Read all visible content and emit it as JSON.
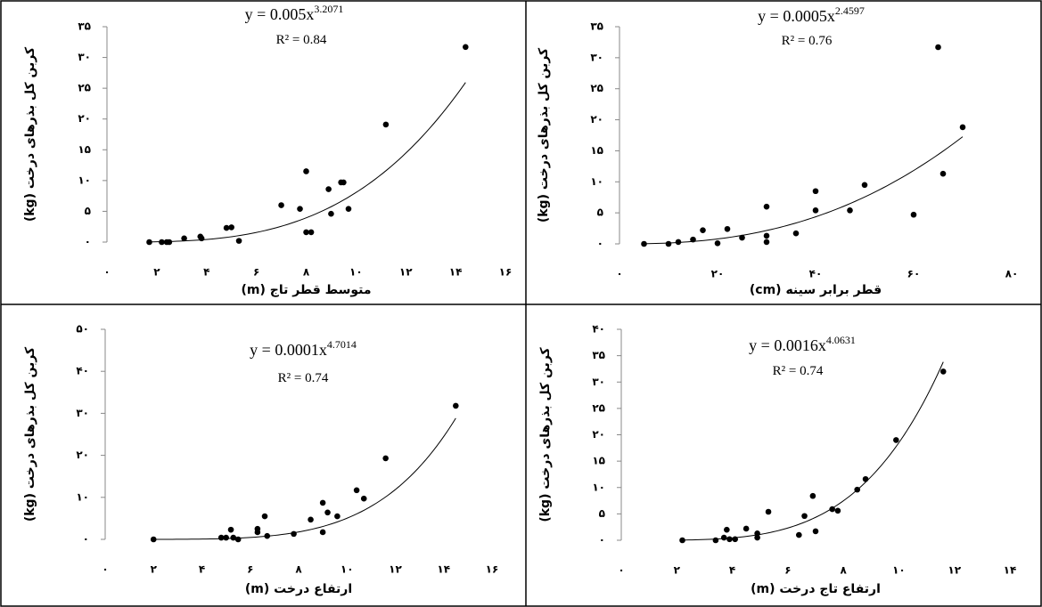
{
  "chart_data": [
    {
      "type": "scatter",
      "color": "#000000",
      "grid": false,
      "x_label": "متوسط قطر تاج (m)",
      "y_label": "کربن کل بذرهای درخت (kg)",
      "x": [
        1.7,
        2.2,
        2.4,
        2.5,
        3.1,
        3.75,
        3.8,
        4.8,
        5.0,
        5.3,
        7.0,
        7.75,
        8.0,
        8.2,
        8.0,
        8.9,
        9.0,
        9.4,
        9.5,
        9.7,
        11.2,
        14.4
      ],
      "y": [
        0,
        0,
        0,
        0,
        0.6,
        0.9,
        0.6,
        2.3,
        2.4,
        0.2,
        6,
        5.4,
        1.6,
        1.6,
        11.5,
        8.6,
        4.6,
        9.7,
        9.7,
        5.4,
        19.1,
        31.7
      ],
      "xlim": [
        0,
        16
      ],
      "ylim": [
        0,
        35
      ],
      "xticks": [
        {
          "value": 0,
          "label": "۰"
        },
        {
          "value": 2,
          "label": "۲"
        },
        {
          "value": 4,
          "label": "۴"
        },
        {
          "value": 6,
          "label": "۶"
        },
        {
          "value": 8,
          "label": "۸"
        },
        {
          "value": 10,
          "label": "۱۰"
        },
        {
          "value": 12,
          "label": "۱۲"
        },
        {
          "value": 14,
          "label": "۱۴"
        },
        {
          "value": 16,
          "label": "۱۶"
        }
      ],
      "yticks": [
        {
          "value": 0,
          "label": "۰"
        },
        {
          "value": 5,
          "label": "۵"
        },
        {
          "value": 10,
          "label": "۱۰"
        },
        {
          "value": 15,
          "label": "۱۵"
        },
        {
          "value": 20,
          "label": "۲۰"
        },
        {
          "value": 25,
          "label": "۲۵"
        },
        {
          "value": 30,
          "label": "۳۰"
        },
        {
          "value": 35,
          "label": "۳۵"
        }
      ],
      "trendline": {
        "type": "power",
        "lhs": "y = ",
        "a": 0.005,
        "var": "x",
        "b": 3.2071,
        "r2_label": "R² = ",
        "r2": 0.84
      }
    },
    {
      "type": "scatter",
      "color": "#000000",
      "grid": false,
      "x_label": "قطر برابر سینه (cm)",
      "y_label": "کربن کل بذرهای درخت (kg)",
      "x": [
        5,
        10,
        12,
        15,
        17,
        20,
        22,
        25,
        30,
        30,
        30,
        36,
        40,
        40,
        47,
        50,
        60,
        65,
        66,
        70
      ],
      "y": [
        0,
        0,
        0.3,
        0.7,
        2.2,
        0.1,
        2.4,
        1,
        6,
        1.3,
        0.3,
        1.7,
        8.5,
        5.4,
        5.4,
        9.5,
        4.7,
        31.7,
        11.3,
        18.8
      ],
      "xlim": [
        0,
        80
      ],
      "ylim": [
        0,
        35
      ],
      "xticks": [
        {
          "value": 0,
          "label": "۰"
        },
        {
          "value": 20,
          "label": "۲۰"
        },
        {
          "value": 40,
          "label": "۴۰"
        },
        {
          "value": 60,
          "label": "۶۰"
        },
        {
          "value": 80,
          "label": "۸۰"
        }
      ],
      "yticks": [
        {
          "value": 0,
          "label": "۰"
        },
        {
          "value": 5,
          "label": "۵"
        },
        {
          "value": 10,
          "label": "۱۰"
        },
        {
          "value": 15,
          "label": "۱۵"
        },
        {
          "value": 20,
          "label": "۲۰"
        },
        {
          "value": 25,
          "label": "۲۵"
        },
        {
          "value": 30,
          "label": "۳۰"
        },
        {
          "value": 35,
          "label": "۳۵"
        }
      ],
      "trendline": {
        "type": "power",
        "lhs": "y = ",
        "a": 0.0005,
        "var": "x",
        "b": 2.4597,
        "r2_label": "R² = ",
        "r2": 0.76
      }
    },
    {
      "type": "scatter",
      "color": "#000000",
      "grid": false,
      "x_label": "ارتفاع درخت (m)",
      "y_label": "کربن کل بذرهای درخت (kg)",
      "x": [
        2.0,
        4.8,
        5.0,
        5.2,
        5.3,
        5.5,
        6.3,
        6.3,
        6.6,
        6.7,
        7.8,
        8.5,
        9.0,
        9.0,
        9.2,
        9.6,
        10.4,
        10.7,
        11.6,
        14.5
      ],
      "y": [
        0,
        0.4,
        0.4,
        2.3,
        0.4,
        0,
        1.7,
        2.5,
        5.5,
        0.8,
        1.3,
        4.7,
        8.7,
        1.7,
        6.4,
        5.5,
        11.7,
        9.7,
        19.3,
        31.8
      ],
      "xlim": [
        0,
        16
      ],
      "ylim": [
        0,
        50
      ],
      "xticks": [
        {
          "value": 0,
          "label": "۰"
        },
        {
          "value": 2,
          "label": "۲"
        },
        {
          "value": 4,
          "label": "۴"
        },
        {
          "value": 6,
          "label": "۶"
        },
        {
          "value": 8,
          "label": "۸"
        },
        {
          "value": 10,
          "label": "۱۰"
        },
        {
          "value": 12,
          "label": "۱۲"
        },
        {
          "value": 14,
          "label": "۱۴"
        },
        {
          "value": 16,
          "label": "۱۶"
        }
      ],
      "yticks": [
        {
          "value": 0,
          "label": "۰"
        },
        {
          "value": 10,
          "label": "۱۰"
        },
        {
          "value": 20,
          "label": "۲۰"
        },
        {
          "value": 30,
          "label": "۳۰"
        },
        {
          "value": 40,
          "label": "۴۰"
        },
        {
          "value": 50,
          "label": "۵۰"
        }
      ],
      "trendline": {
        "type": "power",
        "lhs": "y = ",
        "a": 0.0001,
        "var": "x",
        "b": 4.7014,
        "r2_label": "R² = ",
        "r2": 0.74
      }
    },
    {
      "type": "scatter",
      "color": "#000000",
      "grid": false,
      "x_label": "ارتفاع تاج درخت (m)",
      "y_label": "کربن کل بذرهای درخت (kg)",
      "x": [
        2.2,
        3.4,
        3.7,
        3.8,
        3.9,
        4.1,
        4.5,
        4.9,
        4.9,
        5.3,
        6.4,
        6.6,
        6.9,
        7.0,
        7.6,
        7.8,
        8.5,
        8.8,
        9.9,
        11.6
      ],
      "y": [
        0,
        0,
        0.5,
        2,
        0.2,
        0.2,
        2.2,
        0.5,
        1.3,
        5.4,
        1,
        4.6,
        8.4,
        1.7,
        5.9,
        5.6,
        9.6,
        11.6,
        19,
        32
      ],
      "xlim": [
        0,
        14
      ],
      "ylim": [
        0,
        40
      ],
      "xticks": [
        {
          "value": 0,
          "label": "۰"
        },
        {
          "value": 2,
          "label": "۲"
        },
        {
          "value": 4,
          "label": "۴"
        },
        {
          "value": 6,
          "label": "۶"
        },
        {
          "value": 8,
          "label": "۸"
        },
        {
          "value": 10,
          "label": "۱۰"
        },
        {
          "value": 12,
          "label": "۱۲"
        },
        {
          "value": 14,
          "label": "۱۴"
        }
      ],
      "yticks": [
        {
          "value": 0,
          "label": "۰"
        },
        {
          "value": 5,
          "label": "۵"
        },
        {
          "value": 10,
          "label": "۱۰"
        },
        {
          "value": 15,
          "label": "۱۵"
        },
        {
          "value": 20,
          "label": "۲۰"
        },
        {
          "value": 25,
          "label": "۲۵"
        },
        {
          "value": 30,
          "label": "۳۰"
        },
        {
          "value": 35,
          "label": "۳۵"
        },
        {
          "value": 40,
          "label": "۴۰"
        }
      ],
      "trendline": {
        "type": "power",
        "lhs": "y = ",
        "a": 0.0016,
        "var": "x",
        "b": 4.0631,
        "r2_label": "R² = ",
        "r2": 0.74
      }
    }
  ]
}
